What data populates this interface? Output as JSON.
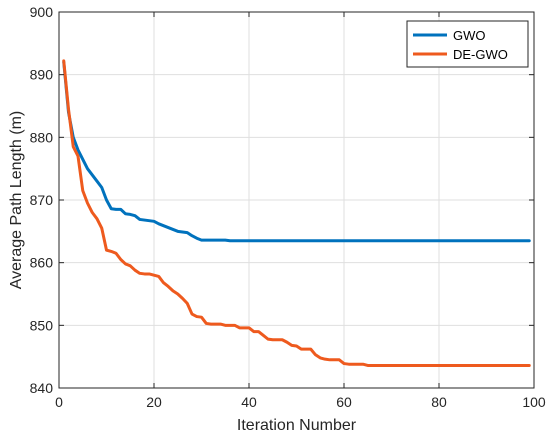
{
  "chart_data": {
    "type": "line",
    "title": "",
    "xlabel": "Iteration Number",
    "ylabel": "Average Path Length (m)",
    "xlim": [
      0,
      100
    ],
    "ylim": [
      840,
      900
    ],
    "xticks": [
      0,
      20,
      40,
      60,
      80,
      100
    ],
    "yticks": [
      840,
      850,
      860,
      870,
      880,
      890,
      900
    ],
    "grid": true,
    "legend_position": "top-right",
    "series": [
      {
        "name": "GWO",
        "color": "#0072BD",
        "points": [
          [
            1,
            892
          ],
          [
            2,
            884
          ],
          [
            3,
            880
          ],
          [
            4,
            878
          ],
          [
            5,
            876.5
          ],
          [
            6,
            875
          ],
          [
            7,
            874
          ],
          [
            8,
            873
          ],
          [
            9,
            872
          ],
          [
            10,
            870
          ],
          [
            11,
            868.6
          ],
          [
            12,
            868.5
          ],
          [
            13,
            868.5
          ],
          [
            14,
            867.8
          ],
          [
            15,
            867.7
          ],
          [
            16,
            867.5
          ],
          [
            17,
            866.9
          ],
          [
            18,
            866.8
          ],
          [
            19,
            866.7
          ],
          [
            20,
            866.6
          ],
          [
            21,
            866.2
          ],
          [
            22,
            865.9
          ],
          [
            23,
            865.6
          ],
          [
            24,
            865.3
          ],
          [
            25,
            865
          ],
          [
            26,
            864.9
          ],
          [
            27,
            864.8
          ],
          [
            28,
            864.3
          ],
          [
            29,
            863.9
          ],
          [
            30,
            863.6
          ],
          [
            31,
            863.6
          ],
          [
            32,
            863.6
          ],
          [
            33,
            863.6
          ],
          [
            34,
            863.6
          ],
          [
            35,
            863.6
          ],
          [
            36,
            863.5
          ],
          [
            40,
            863.5
          ],
          [
            50,
            863.5
          ],
          [
            60,
            863.5
          ],
          [
            70,
            863.5
          ],
          [
            80,
            863.5
          ],
          [
            90,
            863.5
          ],
          [
            99,
            863.5
          ]
        ]
      },
      {
        "name": "DE-GWO",
        "color": "#EE5A1E",
        "points": [
          [
            1,
            892.2
          ],
          [
            2,
            884.5
          ],
          [
            3,
            878.5
          ],
          [
            4,
            877
          ],
          [
            5,
            871.5
          ],
          [
            6,
            869.5
          ],
          [
            7,
            868
          ],
          [
            8,
            867
          ],
          [
            9,
            865.5
          ],
          [
            10,
            862
          ],
          [
            11,
            861.8
          ],
          [
            12,
            861.5
          ],
          [
            13,
            860.5
          ],
          [
            14,
            859.8
          ],
          [
            15,
            859.5
          ],
          [
            16,
            858.8
          ],
          [
            17,
            858.3
          ],
          [
            18,
            858.2
          ],
          [
            19,
            858.2
          ],
          [
            20,
            858
          ],
          [
            21,
            857.8
          ],
          [
            22,
            856.8
          ],
          [
            23,
            856.2
          ],
          [
            24,
            855.5
          ],
          [
            25,
            855
          ],
          [
            26,
            854.3
          ],
          [
            27,
            853.5
          ],
          [
            28,
            851.8
          ],
          [
            29,
            851.4
          ],
          [
            30,
            851.3
          ],
          [
            31,
            850.3
          ],
          [
            32,
            850.2
          ],
          [
            33,
            850.2
          ],
          [
            34,
            850.2
          ],
          [
            35,
            850
          ],
          [
            36,
            850
          ],
          [
            37,
            850
          ],
          [
            38,
            849.6
          ],
          [
            39,
            849.6
          ],
          [
            40,
            849.6
          ],
          [
            41,
            849
          ],
          [
            42,
            849
          ],
          [
            43,
            848.4
          ],
          [
            44,
            847.8
          ],
          [
            45,
            847.7
          ],
          [
            46,
            847.7
          ],
          [
            47,
            847.7
          ],
          [
            48,
            847.3
          ],
          [
            49,
            846.8
          ],
          [
            50,
            846.7
          ],
          [
            51,
            846.2
          ],
          [
            52,
            846.2
          ],
          [
            53,
            846.2
          ],
          [
            54,
            845.3
          ],
          [
            55,
            844.8
          ],
          [
            56,
            844.6
          ],
          [
            57,
            844.5
          ],
          [
            58,
            844.5
          ],
          [
            59,
            844.5
          ],
          [
            60,
            843.9
          ],
          [
            61,
            843.8
          ],
          [
            62,
            843.8
          ],
          [
            63,
            843.8
          ],
          [
            64,
            843.8
          ],
          [
            65,
            843.6
          ],
          [
            70,
            843.6
          ],
          [
            80,
            843.6
          ],
          [
            90,
            843.6
          ],
          [
            99,
            843.6
          ]
        ]
      }
    ]
  }
}
